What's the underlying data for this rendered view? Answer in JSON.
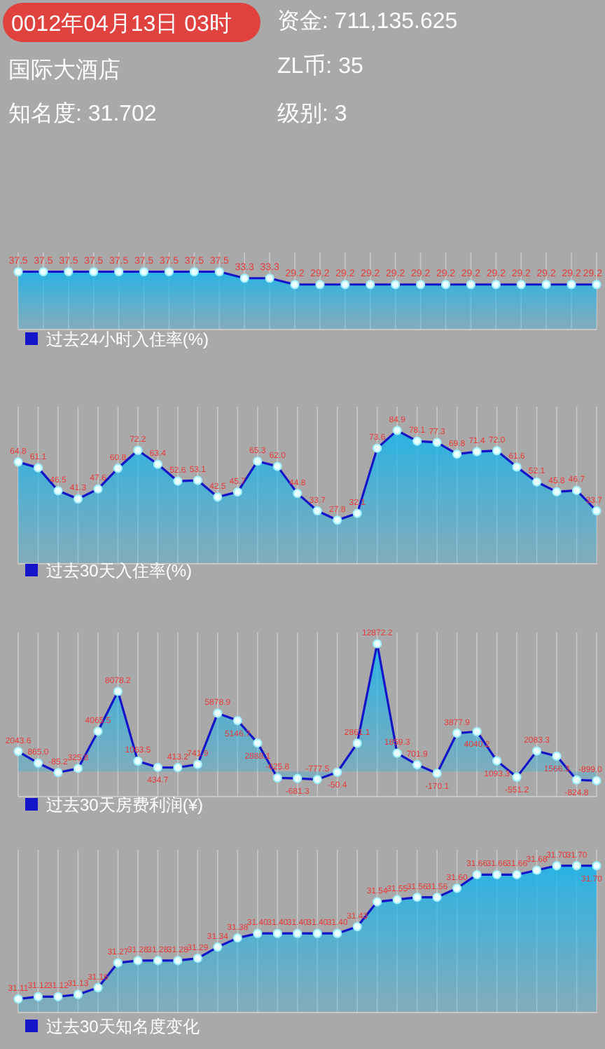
{
  "chart_data": [
    {
      "type": "other",
      "annotations": [
        "0012年04月13日 03时",
        "国际大酒店",
        "知名度: 31.702",
        "资金: 711,135.625",
        "ZL币: 35",
        "级别: 3"
      ]
    },
    {
      "type": "area",
      "categories": [
        null,
        null,
        null,
        null,
        null,
        null,
        null,
        null,
        null,
        null,
        null,
        null,
        null,
        null,
        null,
        null,
        null,
        null,
        null,
        null,
        null,
        null,
        null,
        null
      ],
      "ylim": [
        0,
        50
      ],
      "grid": "x",
      "legend": "bottom left",
      "marker": "circle",
      "series": [
        {
          "name": "过去24小时入住率(%)",
          "color": "#1414c8",
          "values": [
            37.5,
            37.5,
            37.5,
            37.5,
            37.5,
            37.5,
            37.5,
            37.5,
            37.5,
            33.3,
            33.3,
            29.2,
            29.2,
            29.2,
            29.2,
            29.2,
            29.2,
            29.2,
            29.2,
            29.2,
            29.2,
            29.2,
            29.2,
            29.2
          ],
          "value_labels": [
            "37.5",
            "37.5",
            "37.5",
            "37.5",
            "37.5",
            "37.5",
            "37.5",
            "37.5",
            "37.5",
            "33.3",
            "33.3",
            "29.2",
            "29.2",
            "29.2",
            "29.2",
            "29.2",
            "29.2",
            "29.2",
            "29.2",
            "29.2",
            "29.2",
            "29.2",
            "29.2",
            "29.2"
          ]
        }
      ]
    },
    {
      "type": "area",
      "categories": [
        null,
        null,
        null,
        null,
        null,
        null,
        null,
        null,
        null,
        null,
        null,
        null,
        null,
        null,
        null,
        null,
        null,
        null,
        null,
        null,
        null,
        null,
        null,
        null,
        null,
        null,
        null,
        null,
        null,
        null
      ],
      "ylim": [
        0,
        100
      ],
      "grid": "x",
      "legend": "bottom left",
      "marker": "circle",
      "series": [
        {
          "name": "过去30天入住率(%)",
          "color": "#1414c8",
          "values": [
            64.8,
            61.1,
            46.5,
            41.3,
            47.6,
            60.8,
            72.2,
            63.4,
            52.6,
            53.1,
            42.5,
            45.7,
            65.3,
            62.0,
            44.8,
            33.7,
            27.8,
            32.1,
            73.6,
            84.9,
            78.1,
            77.3,
            69.8,
            71.4,
            72.0,
            61.6,
            52.1,
            45.8,
            46.7,
            33.7
          ],
          "value_labels": [
            "64.8",
            "61.1",
            "46.5",
            "41.3",
            "47.6",
            "60.8",
            "72.2",
            "63.4",
            "52.6",
            "53.1",
            "42.5",
            "45.7",
            "65.3",
            "62.0",
            "44.8",
            "33.7",
            "27.8",
            "32.1",
            "73.6",
            "84.9",
            "78.1",
            "77.3",
            "69.8",
            "71.4",
            "72.0",
            "61.6",
            "52.1",
            "45.8",
            "46.7",
            "33.7"
          ]
        }
      ]
    },
    {
      "type": "area",
      "categories": [
        null,
        null,
        null,
        null,
        null,
        null,
        null,
        null,
        null,
        null,
        null,
        null,
        null,
        null,
        null,
        null,
        null,
        null,
        null,
        null,
        null,
        null,
        null,
        null,
        null,
        null,
        null,
        null,
        null,
        null
      ],
      "ylim": [
        -2500,
        14000
      ],
      "grid": "x",
      "legend": "bottom left",
      "marker": "circle",
      "series": [
        {
          "name": "过去30天房费利润(¥)",
          "color": "#1414c8",
          "values": [
            2043.6,
            865.0,
            -85.2,
            325.8,
            4065.5,
            8078.2,
            1063.5,
            434.7,
            413.2,
            741.9,
            5878.9,
            5146.7,
            2888.1,
            -625.8,
            -681.3,
            -777.5,
            -50.4,
            2861.1,
            12872.2,
            1859.3,
            701.9,
            -170.1,
            3877.9,
            4040.2,
            1093.3,
            -551.2,
            2083.3,
            1566.3,
            -824.8,
            -899.0
          ],
          "value_labels": [
            "2043.6",
            "865.0",
            "-85.2",
            "325.8",
            "4065.5",
            "8078.2",
            "1063.5",
            "434.7",
            "413.2",
            "741.9",
            "5878.9",
            "5146.7",
            "2888.1",
            "-625.8",
            "-681.3",
            "-777.5",
            "-50.4",
            "2861.1",
            "12872.2",
            "1859.3",
            "701.9",
            "-170.1",
            "3877.9",
            "4040.2",
            "1093.3",
            "-551.2",
            "2083.3",
            "1566.3",
            "-824.8",
            "-899.0"
          ]
        }
      ]
    },
    {
      "type": "area",
      "categories": [
        null,
        null,
        null,
        null,
        null,
        null,
        null,
        null,
        null,
        null,
        null,
        null,
        null,
        null,
        null,
        null,
        null,
        null,
        null,
        null,
        null,
        null,
        null,
        null,
        null,
        null,
        null,
        null,
        null,
        null
      ],
      "ylim": [
        31.05,
        31.77
      ],
      "grid": "x",
      "legend": "bottom left",
      "marker": "circle",
      "series": [
        {
          "name": "过去30天知名度变化",
          "color": "#1414c8",
          "values": [
            31.11,
            31.12,
            31.12,
            31.13,
            31.16,
            31.27,
            31.28,
            31.28,
            31.28,
            31.29,
            31.34,
            31.38,
            31.4,
            31.4,
            31.4,
            31.4,
            31.4,
            31.43,
            31.54,
            31.55,
            31.56,
            31.56,
            31.6,
            31.66,
            31.66,
            31.66,
            31.68,
            31.7,
            31.7,
            31.7
          ],
          "value_labels": [
            "31.11",
            "31.12",
            "31.12",
            "31.13",
            "31.16",
            "31.27",
            "31.28",
            "31.28",
            "31.28",
            "31.29",
            "31.34",
            "31.38",
            "31.40",
            "31.40",
            "31.40",
            "31.40",
            "31.40",
            "31.43",
            "31.54",
            "31.55",
            "31.56",
            "31.56",
            "31.60",
            "31.66",
            "31.66",
            "31.66",
            "31.68",
            "31.70",
            "31.70",
            "31.70"
          ]
        }
      ]
    }
  ]
}
